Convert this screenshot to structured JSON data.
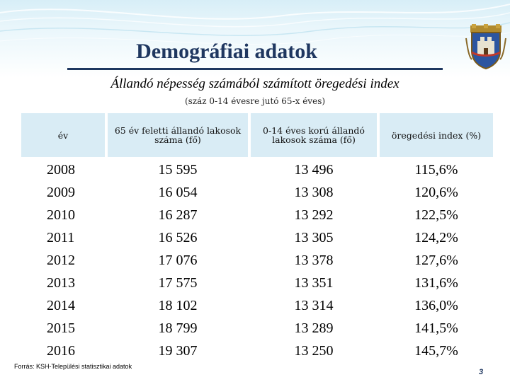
{
  "title": "Demográfiai adatok",
  "subtitle": "Állandó népesség számából számított öregedési index",
  "note": "(száz 0-14 évesre jutó 65-x éves)",
  "table": {
    "headers": [
      "év",
      "65 év feletti állandó lakosok száma (fő)",
      "0-14 éves korú állandó lakosok száma (fő)",
      "öregedési index (%)"
    ],
    "rows": [
      [
        "2008",
        "15 595",
        "13 496",
        "115,6%"
      ],
      [
        "2009",
        "16 054",
        "13 308",
        "120,6%"
      ],
      [
        "2010",
        "16 287",
        "13 292",
        "122,5%"
      ],
      [
        "2011",
        "16 526",
        "13 305",
        "124,2%"
      ],
      [
        "2012",
        "17 076",
        "13 378",
        "127,6%"
      ],
      [
        "2013",
        "17 575",
        "13 351",
        "131,6%"
      ],
      [
        "2014",
        "18 102",
        "13 314",
        "136,0%"
      ],
      [
        "2015",
        "18 799",
        "13 289",
        "141,5%"
      ],
      [
        "2016",
        "19 307",
        "13 250",
        "145,7%"
      ]
    ]
  },
  "source": "Forrás: KSH-Települési statisztikai adatok",
  "page_number": "3",
  "colors": {
    "title": "#1f3760",
    "header_fill": "#d9ecf5",
    "band": "#d7eef7"
  },
  "icons": [
    "city-coat-of-arms-icon"
  ]
}
